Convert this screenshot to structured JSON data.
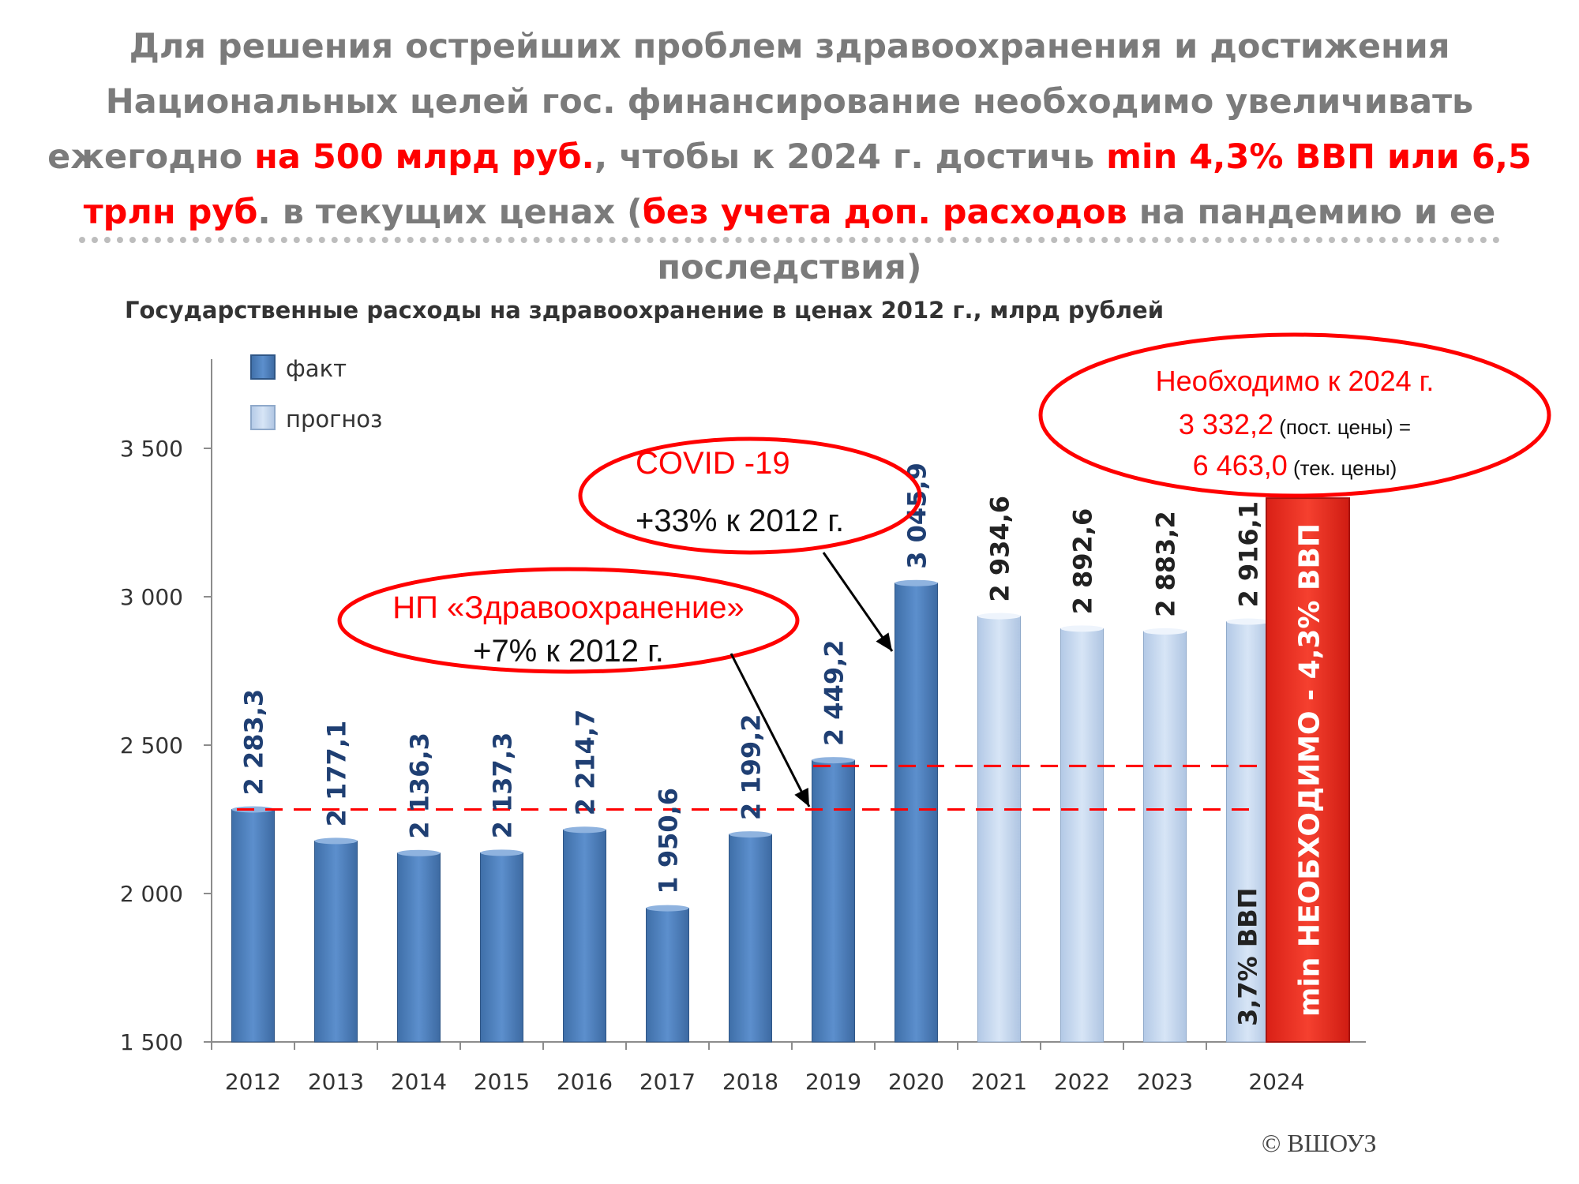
{
  "headline": {
    "part1": "Для решения острейших проблем здравоохранения и достижения Национальных целей гос. финансирование необходимо увеличивать ежегодно ",
    "part2": "на 500 млрд руб.",
    "part3": ", чтобы к 2024 г. достичь ",
    "part4": "min 4,3% ВВП или 6,5 трлн руб",
    "part5": ". в текущих ценах (",
    "part6": "без учета доп. расходов",
    "part7": " на пандемию и ее последствия)"
  },
  "copyright": "© ВШОУЗ",
  "colors": {
    "fact": "#4f81bd",
    "forecast": "#c6d9f1",
    "required": "#f0302a",
    "accent": "#ff0000"
  },
  "chart_data": {
    "type": "bar",
    "title": "Государственные расходы на здравоохранение в ценах 2012 г., млрд рублей",
    "ylim": [
      1500,
      3800
    ],
    "yticks": [
      1500,
      2000,
      2500,
      3000,
      3500
    ],
    "ytick_labels": [
      "1 500",
      "2 000",
      "2 500",
      "3 000",
      "3 500"
    ],
    "categories": [
      "2012",
      "2013",
      "2014",
      "2015",
      "2016",
      "2017",
      "2018",
      "2019",
      "2020",
      "2021",
      "2022",
      "2023",
      "2024"
    ],
    "series": [
      {
        "name": "факт",
        "values": [
          2283.3,
          2177.1,
          2136.3,
          2137.3,
          2214.7,
          1950.6,
          2199.2,
          2449.2,
          3045.9,
          null,
          null,
          null,
          null
        ],
        "labels": [
          "2 283,3",
          "2 177,1",
          "2 136,3",
          "2 137,3",
          "2 214,7",
          "1 950,6",
          "2 199,2",
          "2 449,2",
          "3 045,9",
          "",
          "",
          "",
          ""
        ]
      },
      {
        "name": "прогноз",
        "values": [
          null,
          null,
          null,
          null,
          null,
          null,
          null,
          null,
          null,
          2934.6,
          2892.6,
          2883.2,
          2916.1
        ],
        "labels": [
          "",
          "",
          "",
          "",
          "",
          "",
          "",
          "",
          "",
          "2 934,6",
          "2 892,6",
          "2 883,2",
          "2 916,1"
        ]
      },
      {
        "name": "min НЕОБХОДИМО - 4,3% ВВП",
        "values": [
          null,
          null,
          null,
          null,
          null,
          null,
          null,
          null,
          null,
          null,
          null,
          null,
          3332.2
        ]
      }
    ],
    "reference_lines": [
      2283.3,
      2430
    ],
    "bar_2024_forecast_label": "3,7% ВВП",
    "bar_2024_required_label": "min НЕОБХОДИМО - 4,3% ВВП",
    "legend": {
      "position": "top-left",
      "items": [
        {
          "label": "факт",
          "color": "#4f81bd"
        },
        {
          "label": "прогноз",
          "color": "#c6d9f1"
        }
      ]
    },
    "annotations": {
      "covid": {
        "line1": "COVID -19",
        "line2": "+33% к 2012 г."
      },
      "np": {
        "line1": "НП «Здравоохранение»",
        "line2": "+7% к 2012 г."
      },
      "needed": {
        "line1": "Необходимо к 2024 г.",
        "line2_value": "3 332,2",
        "line2_note": " (пост. цены) =",
        "line3_value": "6 463,0",
        "line3_note": " (тек. цены)"
      }
    },
    "grid": false
  }
}
